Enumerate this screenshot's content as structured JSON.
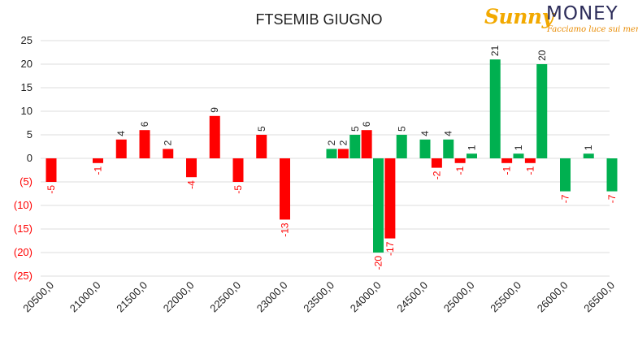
{
  "logo": {
    "brand_left": "Sunny",
    "brand_right": "MONEY",
    "tagline": "Facciamo luce sui mercati"
  },
  "colors": {
    "positive_early": "#ff0000",
    "positive_late": "#00b050",
    "negative_early": "#ff0000",
    "negative_late": "#00b050",
    "label_negative": "#ff0000",
    "label_positive": "#222222",
    "grid": "#dddddd"
  },
  "chart_data": {
    "type": "bar",
    "title": "FTSEMIB GIUGNO",
    "xlabel": "",
    "ylabel": "",
    "ylim": [
      -25,
      25
    ],
    "yticks": [
      25,
      20,
      15,
      10,
      5,
      0,
      -5,
      -10,
      -15,
      -20,
      -25
    ],
    "ytick_labels": [
      "25",
      "20",
      "15",
      "10",
      "5",
      "0",
      "(5)",
      "(10)",
      "(15)",
      "(20)",
      "(25)"
    ],
    "xticks": [
      "20500,0",
      "21000,0",
      "21500,0",
      "22000,0",
      "22500,0",
      "23000,0",
      "23500,0",
      "24000,0",
      "24500,0",
      "25000,0",
      "25500,0",
      "26000,0",
      "26500,0"
    ],
    "grid": true,
    "legend": "none",
    "series": [
      {
        "color_role": "red",
        "points": [
          {
            "x": 20500,
            "y": -5
          },
          {
            "x": 21000,
            "y": -1
          },
          {
            "x": 21250,
            "y": 4
          },
          {
            "x": 21500,
            "y": 6
          },
          {
            "x": 21750,
            "y": 2
          },
          {
            "x": 22000,
            "y": -4
          },
          {
            "x": 22250,
            "y": 9
          },
          {
            "x": 22500,
            "y": -5
          },
          {
            "x": 22750,
            "y": 5
          },
          {
            "x": 23000,
            "y": -13
          },
          {
            "x": 23625,
            "y": 2
          },
          {
            "x": 23875,
            "y": 6
          },
          {
            "x": 24125,
            "y": -17
          },
          {
            "x": 24625,
            "y": -2
          },
          {
            "x": 24875,
            "y": -1
          },
          {
            "x": 25375,
            "y": -1
          },
          {
            "x": 25625,
            "y": -1
          }
        ]
      },
      {
        "color_role": "green",
        "points": [
          {
            "x": 23500,
            "y": 2
          },
          {
            "x": 23750,
            "y": 5
          },
          {
            "x": 24000,
            "y": -20
          },
          {
            "x": 24250,
            "y": 5
          },
          {
            "x": 24500,
            "y": 4
          },
          {
            "x": 24750,
            "y": 4
          },
          {
            "x": 25000,
            "y": 1
          },
          {
            "x": 25250,
            "y": 21
          },
          {
            "x": 25500,
            "y": 1
          },
          {
            "x": 25750,
            "y": 20
          },
          {
            "x": 26000,
            "y": -7
          },
          {
            "x": 26250,
            "y": 1
          },
          {
            "x": 26500,
            "y": -7
          }
        ]
      }
    ]
  }
}
